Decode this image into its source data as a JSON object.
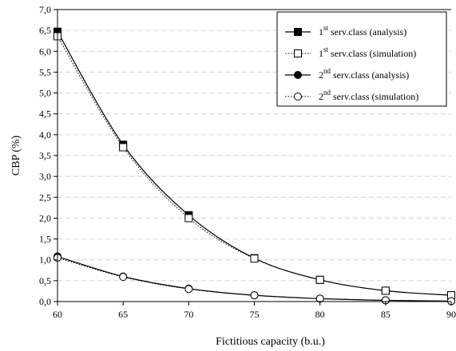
{
  "chart_data": {
    "type": "line",
    "title": "",
    "xlabel": "Fictitious capacity (b.u.)",
    "ylabel": "CBP (%)",
    "xlim": [
      60,
      90
    ],
    "ylim": [
      0,
      7.0
    ],
    "x_ticks": [
      "60",
      "65",
      "70",
      "75",
      "80",
      "85",
      "90"
    ],
    "y_ticks": [
      "0,0",
      "0,5",
      "1,0",
      "1,5",
      "2,0",
      "2,5",
      "3,0",
      "3,5",
      "4,0",
      "4,5",
      "5,0",
      "5,5",
      "6,0",
      "6,5",
      "7,0"
    ],
    "grid": "horizontal dashed",
    "legend_position": "top-right",
    "x": [
      60,
      65,
      70,
      75,
      80,
      85,
      90
    ],
    "series": [
      {
        "name_main": "1",
        "name_sup": "st",
        "name_rest": " serv.class (analysis)",
        "marker": "filled-square",
        "line": "solid",
        "values": [
          6.47,
          3.76,
          2.07,
          1.04,
          0.52,
          0.26,
          0.15
        ]
      },
      {
        "name_main": "1",
        "name_sup": "st",
        "name_rest": " serv.class (simulation)",
        "marker": "open-square",
        "line": "dotted",
        "values": [
          6.36,
          3.7,
          2.0,
          1.03,
          0.52,
          0.26,
          0.15
        ]
      },
      {
        "name_main": "2",
        "name_sup": "nd",
        "name_rest": " serv.class (analysis)",
        "marker": "filled-circle",
        "line": "solid",
        "values": [
          1.08,
          0.6,
          0.31,
          0.15,
          0.07,
          0.03,
          0.01
        ]
      },
      {
        "name_main": "2",
        "name_sup": "nd",
        "name_rest": " serv.class (simulation)",
        "marker": "open-circle",
        "line": "dotted",
        "values": [
          1.05,
          0.59,
          0.3,
          0.15,
          0.07,
          0.03,
          0.01
        ]
      }
    ]
  }
}
